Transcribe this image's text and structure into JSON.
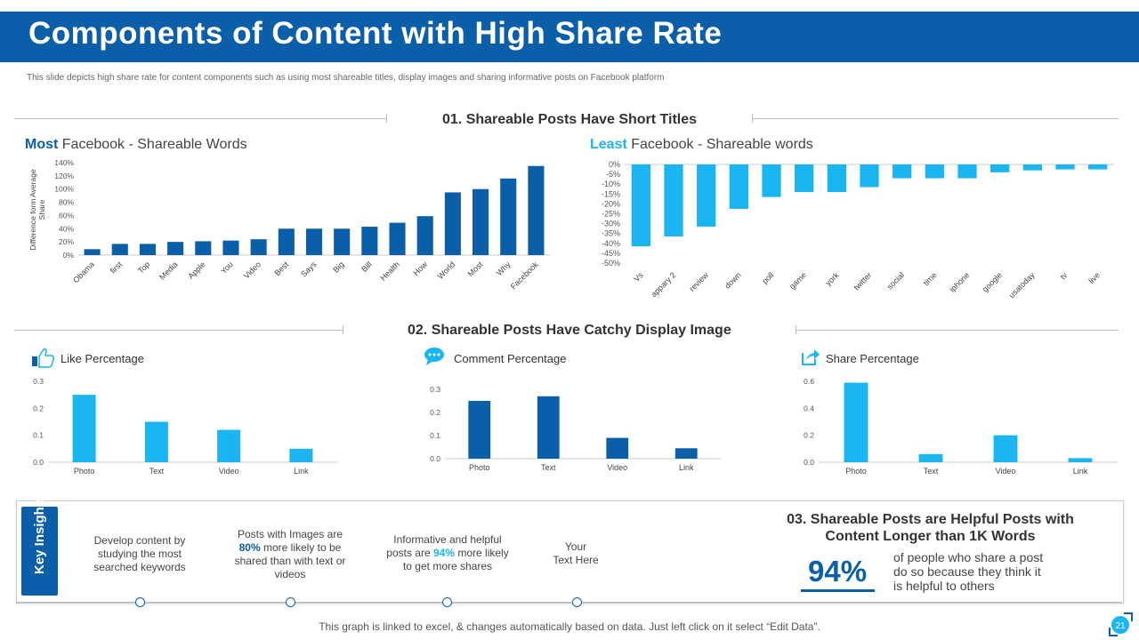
{
  "header": {
    "title": "Components of Content with High Share Rate",
    "subtitle": "This slide depicts high share rate for content components such as using most shareable titles, display images and sharing informative posts on Facebook platform"
  },
  "section1": {
    "title": "01. Shareable Posts Have Short Titles",
    "left_heading_hl": "Most",
    "left_heading_rest": " Facebook - Shareable Words",
    "right_heading_hl": "Least",
    "right_heading_rest": " Facebook - Shareable words"
  },
  "section2": {
    "title": "02. Shareable Posts Have Catchy Display Image",
    "like_label": "Like Percentage",
    "comment_label": "Comment Percentage",
    "share_label": "Share Percentage"
  },
  "insights": {
    "tab_label": "Key Insights",
    "item1": "Develop content by studying the most searched keywords",
    "item2_pre": "Posts with Images are ",
    "item2_hl": "80%",
    "item2_post": " more likely to be shared than with text  or videos",
    "item3_pre": "Informative and helpful posts are ",
    "item3_hl": "94%",
    "item3_post": " more likely to get more shares",
    "item4_line1": "Your",
    "item4_line2": "Text Here"
  },
  "section3": {
    "title": "03. Shareable Posts are Helpful Posts with Content Longer than 1K Words",
    "stat": "94%",
    "stat_text": "of people who share a post do so because they think it is helpful to others"
  },
  "footer": "This graph is linked to excel, & changes automatically based on data. Just left click on it select “Edit Data”.",
  "page_number": "21",
  "colors": {
    "dark_blue": "#0b5ea8",
    "light_blue": "#1bb5f2"
  },
  "chart_data": [
    {
      "id": "most",
      "type": "bar",
      "title": "Most Facebook - Shareable Words",
      "ylabel": "Difference form Average Share",
      "ylim": [
        0,
        140
      ],
      "yticks": [
        0,
        20,
        40,
        60,
        80,
        100,
        120,
        140
      ],
      "tick_suffix": "%",
      "color": "#0b5ea8",
      "categories": [
        "Obama",
        "first",
        "Top",
        "Media",
        "Apple",
        "You",
        "Video",
        "Best",
        "Says",
        "Big",
        "Bill",
        "Health",
        "How",
        "World",
        "Most",
        "Why",
        "Facebook"
      ],
      "values": [
        9,
        17,
        17,
        20,
        21,
        22,
        24,
        40,
        40,
        40,
        43,
        49,
        59,
        95,
        100,
        116,
        135
      ]
    },
    {
      "id": "least",
      "type": "bar",
      "title": "Least Facebook - Shareable words",
      "ylim": [
        -50,
        0
      ],
      "yticks": [
        0,
        -5,
        -10,
        -15,
        -20,
        -25,
        -30,
        -35,
        -40,
        -45,
        -50
      ],
      "tick_suffix": "%",
      "color": "#1bb5f2",
      "categories": [
        "Vs",
        "appary 2",
        "review",
        "down",
        "poll",
        "game",
        "york",
        "twitter",
        "social",
        "time",
        "iphone",
        "google",
        "usatoday",
        "tv",
        "live"
      ],
      "values": [
        -41.5,
        -36.5,
        -31.5,
        -22.5,
        -16.5,
        -14,
        -14,
        -11.5,
        -7,
        -7,
        -7,
        -4,
        -3,
        -2.5,
        -2.5
      ]
    },
    {
      "id": "like",
      "type": "bar",
      "title": "Like Percentage",
      "ylim": [
        0,
        0.3
      ],
      "yticks": [
        0.0,
        0.1,
        0.2,
        0.3
      ],
      "color": "#1bb5f2",
      "categories": [
        "Photo",
        "Text",
        "Video",
        "Link"
      ],
      "values": [
        0.25,
        0.15,
        0.12,
        0.05
      ]
    },
    {
      "id": "comment",
      "type": "bar",
      "title": "Comment Percentage",
      "ylim": [
        0,
        0.3
      ],
      "yticks": [
        0.0,
        0.1,
        0.2,
        0.3
      ],
      "color": "#0b5ea8",
      "categories": [
        "Photo",
        "Text",
        "Video",
        "Link"
      ],
      "values": [
        0.25,
        0.27,
        0.09,
        0.045
      ]
    },
    {
      "id": "share",
      "type": "bar",
      "title": "Share Percentage",
      "ylim": [
        0,
        0.6
      ],
      "yticks": [
        0.0,
        0.2,
        0.4,
        0.6
      ],
      "color": "#1bb5f2",
      "categories": [
        "Photo",
        "Text",
        "Video",
        "Link"
      ],
      "values": [
        0.59,
        0.06,
        0.2,
        0.03
      ]
    }
  ]
}
